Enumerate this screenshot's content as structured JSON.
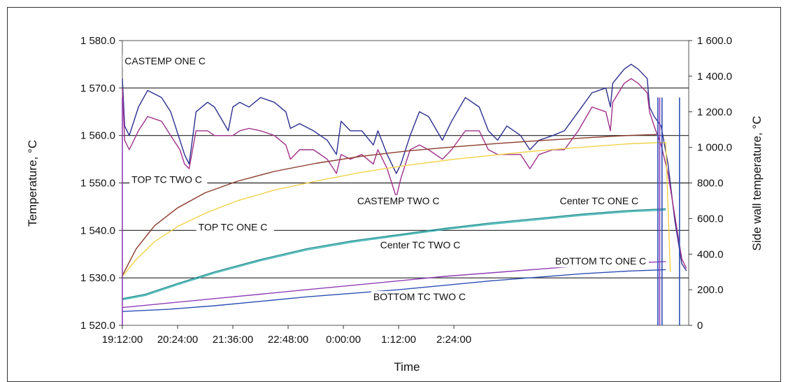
{
  "chart_data": {
    "type": "line",
    "title": "",
    "xlabel": "Time",
    "ylabel_left": "Temperature, °C",
    "ylabel_right": "Side wall temperature, °C",
    "x_ticks": [
      "19:12:00",
      "20:24:00",
      "21:36:00",
      "22:48:00",
      "0:00:00",
      "1:12:00",
      "2:24:00"
    ],
    "y_left_ticks": [
      "1 520.0",
      "1 530.0",
      "1 540.0",
      "1 550.0",
      "1 560.0",
      "1 570.0",
      "1 580.0"
    ],
    "y_right_ticks": [
      "0",
      "200.0",
      "400.0",
      "600.0",
      "800.0",
      "1 000.0",
      "1 200.0",
      "1 400.0",
      "1 600.0"
    ],
    "ylim_left": [
      1520,
      1580
    ],
    "ylim_right": [
      0,
      1600
    ],
    "grid": "horizontal",
    "x_unit": "hours after 19:12:00",
    "series": [
      {
        "name": "CASTEMP ONE C",
        "axis": "left",
        "color": "#2b2f8f",
        "points": [
          [
            0,
            1572
          ],
          [
            0.05,
            1562
          ],
          [
            0.15,
            1560
          ],
          [
            0.35,
            1566
          ],
          [
            0.55,
            1569.5
          ],
          [
            0.85,
            1568
          ],
          [
            1.05,
            1565
          ],
          [
            1.25,
            1559
          ],
          [
            1.35,
            1556
          ],
          [
            1.45,
            1554
          ],
          [
            1.6,
            1565
          ],
          [
            1.85,
            1567
          ],
          [
            2.0,
            1566
          ],
          [
            2.3,
            1561
          ],
          [
            2.4,
            1566
          ],
          [
            2.55,
            1567
          ],
          [
            2.75,
            1566
          ],
          [
            3.0,
            1568
          ],
          [
            3.3,
            1567
          ],
          [
            3.55,
            1565
          ],
          [
            3.65,
            1561.5
          ],
          [
            3.85,
            1562.5
          ],
          [
            4.15,
            1561
          ],
          [
            4.45,
            1559
          ],
          [
            4.65,
            1556
          ],
          [
            4.75,
            1563
          ],
          [
            4.95,
            1561
          ],
          [
            5.2,
            1561
          ],
          [
            5.45,
            1558
          ],
          [
            5.55,
            1561
          ],
          [
            5.75,
            1556
          ],
          [
            5.95,
            1552
          ],
          [
            6.05,
            1554
          ],
          [
            6.25,
            1560
          ],
          [
            6.45,
            1565
          ],
          [
            6.65,
            1564
          ],
          [
            6.95,
            1559
          ],
          [
            7.15,
            1563
          ],
          [
            7.45,
            1568
          ],
          [
            7.75,
            1566
          ],
          [
            7.95,
            1561
          ],
          [
            8.15,
            1559
          ],
          [
            8.35,
            1562
          ],
          [
            8.65,
            1560
          ],
          [
            8.85,
            1557
          ],
          [
            9.05,
            1559
          ],
          [
            9.35,
            1560
          ],
          [
            9.6,
            1561
          ],
          [
            9.9,
            1565
          ],
          [
            10.2,
            1569
          ],
          [
            10.5,
            1570
          ],
          [
            10.6,
            1566
          ],
          [
            10.65,
            1571
          ],
          [
            10.9,
            1574
          ],
          [
            11.05,
            1575
          ],
          [
            11.2,
            1574
          ],
          [
            11.4,
            1572
          ],
          [
            11.45,
            1566
          ],
          [
            11.55,
            1564
          ],
          [
            11.7,
            1562
          ],
          [
            11.85,
            1554
          ],
          [
            12.0,
            1542
          ],
          [
            12.15,
            1533
          ],
          [
            12.25,
            1531.5
          ]
        ]
      },
      {
        "name": "CASTEMP TWO C",
        "axis": "left",
        "color": "#a0308a",
        "points": [
          [
            0,
            1570
          ],
          [
            0.05,
            1559
          ],
          [
            0.15,
            1557
          ],
          [
            0.35,
            1561
          ],
          [
            0.55,
            1564
          ],
          [
            0.85,
            1563
          ],
          [
            1.05,
            1560
          ],
          [
            1.25,
            1557
          ],
          [
            1.35,
            1554
          ],
          [
            1.45,
            1553
          ],
          [
            1.6,
            1561
          ],
          [
            1.85,
            1561
          ],
          [
            2.0,
            1560
          ],
          [
            2.3,
            1560
          ],
          [
            2.4,
            1560
          ],
          [
            2.55,
            1561
          ],
          [
            2.75,
            1561.5
          ],
          [
            3.0,
            1561
          ],
          [
            3.3,
            1560
          ],
          [
            3.55,
            1558
          ],
          [
            3.65,
            1555
          ],
          [
            3.85,
            1557
          ],
          [
            4.15,
            1557
          ],
          [
            4.45,
            1555
          ],
          [
            4.65,
            1552
          ],
          [
            4.75,
            1556
          ],
          [
            4.95,
            1555
          ],
          [
            5.2,
            1556
          ],
          [
            5.45,
            1554
          ],
          [
            5.55,
            1557
          ],
          [
            5.75,
            1553
          ],
          [
            5.95,
            1547
          ],
          [
            6.05,
            1551
          ],
          [
            6.25,
            1557
          ],
          [
            6.45,
            1558
          ],
          [
            6.65,
            1557
          ],
          [
            6.95,
            1555
          ],
          [
            7.15,
            1557
          ],
          [
            7.45,
            1561
          ],
          [
            7.75,
            1561
          ],
          [
            7.95,
            1557
          ],
          [
            8.15,
            1556
          ],
          [
            8.35,
            1556
          ],
          [
            8.65,
            1556
          ],
          [
            8.85,
            1553
          ],
          [
            9.05,
            1556
          ],
          [
            9.35,
            1557
          ],
          [
            9.6,
            1557
          ],
          [
            9.9,
            1561
          ],
          [
            10.2,
            1566
          ],
          [
            10.5,
            1565
          ],
          [
            10.6,
            1561
          ],
          [
            10.65,
            1567
          ],
          [
            10.9,
            1571
          ],
          [
            11.05,
            1572
          ],
          [
            11.2,
            1571
          ],
          [
            11.4,
            1569
          ],
          [
            11.45,
            1565
          ],
          [
            11.55,
            1562
          ],
          [
            11.7,
            1558
          ],
          [
            11.85,
            1552
          ],
          [
            12.0,
            1543
          ],
          [
            12.15,
            1534
          ],
          [
            12.25,
            1532
          ]
        ]
      },
      {
        "name": "TOP TC TWO C",
        "axis": "right",
        "color": "#8a3a2a",
        "points": [
          [
            0,
            280
          ],
          [
            0.3,
            430
          ],
          [
            0.7,
            560
          ],
          [
            1.2,
            660
          ],
          [
            1.8,
            745
          ],
          [
            2.5,
            810
          ],
          [
            3.3,
            865
          ],
          [
            4.2,
            910
          ],
          [
            5.2,
            950
          ],
          [
            6.2,
            980
          ],
          [
            7.2,
            1003
          ],
          [
            8.2,
            1023
          ],
          [
            9.2,
            1040
          ],
          [
            10.2,
            1056
          ],
          [
            11.0,
            1067
          ],
          [
            11.6,
            1072
          ]
        ]
      },
      {
        "name": "TOP TC ONE C",
        "axis": "right",
        "color": "#f2d24a",
        "points": [
          [
            0,
            275
          ],
          [
            0.3,
            370
          ],
          [
            0.7,
            470
          ],
          [
            1.2,
            555
          ],
          [
            1.8,
            630
          ],
          [
            2.5,
            700
          ],
          [
            3.3,
            760
          ],
          [
            4.2,
            810
          ],
          [
            5.2,
            860
          ],
          [
            6.2,
            900
          ],
          [
            7.2,
            933
          ],
          [
            8.2,
            960
          ],
          [
            9.2,
            985
          ],
          [
            10.2,
            1005
          ],
          [
            11.0,
            1020
          ],
          [
            11.8,
            1028
          ],
          [
            11.9,
            300
          ]
        ]
      },
      {
        "name": "Center TC ONE C",
        "axis": "right",
        "color": "#1f8c8c",
        "points": [
          [
            0,
            150
          ],
          [
            0.5,
            175
          ],
          [
            1.2,
            235
          ],
          [
            2.0,
            300
          ],
          [
            3.0,
            370
          ],
          [
            4.0,
            430
          ],
          [
            5.0,
            475
          ],
          [
            6.0,
            510
          ],
          [
            7.0,
            545
          ],
          [
            8.0,
            575
          ],
          [
            9.0,
            600
          ],
          [
            10.0,
            625
          ],
          [
            11.0,
            645
          ],
          [
            11.8,
            655
          ]
        ]
      },
      {
        "name": "Center TC TWO C",
        "axis": "right",
        "color": "#3ab5b5",
        "points": [
          [
            0,
            143
          ],
          [
            0.5,
            168
          ],
          [
            1.2,
            228
          ],
          [
            2.0,
            293
          ],
          [
            3.0,
            363
          ],
          [
            4.0,
            423
          ],
          [
            5.0,
            468
          ],
          [
            6.0,
            503
          ],
          [
            7.0,
            538
          ],
          [
            8.0,
            568
          ],
          [
            9.0,
            593
          ],
          [
            10.0,
            618
          ],
          [
            11.0,
            638
          ],
          [
            11.8,
            648
          ]
        ]
      },
      {
        "name": "BOTTOM TC ONE C",
        "axis": "right",
        "color": "#8f3fb8",
        "points": [
          [
            0,
            100
          ],
          [
            1.0,
            125
          ],
          [
            2.0,
            150
          ],
          [
            3.0,
            175
          ],
          [
            4.0,
            200
          ],
          [
            5.0,
            225
          ],
          [
            6.0,
            250
          ],
          [
            7.0,
            275
          ],
          [
            8.0,
            295
          ],
          [
            9.0,
            315
          ],
          [
            10.0,
            335
          ],
          [
            11.0,
            350
          ],
          [
            11.8,
            358
          ]
        ]
      },
      {
        "name": "BOTTOM TC TWO C",
        "axis": "right",
        "color": "#2c4fb5",
        "points": [
          [
            0,
            78
          ],
          [
            1.0,
            90
          ],
          [
            2.0,
            110
          ],
          [
            3.0,
            135
          ],
          [
            4.0,
            160
          ],
          [
            5.0,
            180
          ],
          [
            6.0,
            200
          ],
          [
            7.0,
            225
          ],
          [
            8.0,
            250
          ],
          [
            9.0,
            270
          ],
          [
            10.0,
            290
          ],
          [
            11.0,
            305
          ],
          [
            11.8,
            313
          ]
        ]
      }
    ],
    "annotations": [
      {
        "text": "CASTEMP ONE C",
        "x": 0.05,
        "y": 1575
      },
      {
        "text": "TOP TC TWO C",
        "x": 0.2,
        "y": 1550
      },
      {
        "text": "CASTEMP TWO C",
        "x": 5.1,
        "y": 1545.5
      },
      {
        "text": "Center TC ONE C",
        "x": 9.5,
        "y": 1545.5
      },
      {
        "text": "TOP TC ONE C",
        "x": 1.65,
        "y": 1540
      },
      {
        "text": "Center TC TWO C",
        "x": 5.6,
        "y": 1536.2
      },
      {
        "text": "BOTTOM TC ONE C",
        "x": 9.4,
        "y": 1532.8
      },
      {
        "text": "BOTTOM TC TWO C",
        "x": 5.45,
        "y": 1525.3
      }
    ]
  }
}
